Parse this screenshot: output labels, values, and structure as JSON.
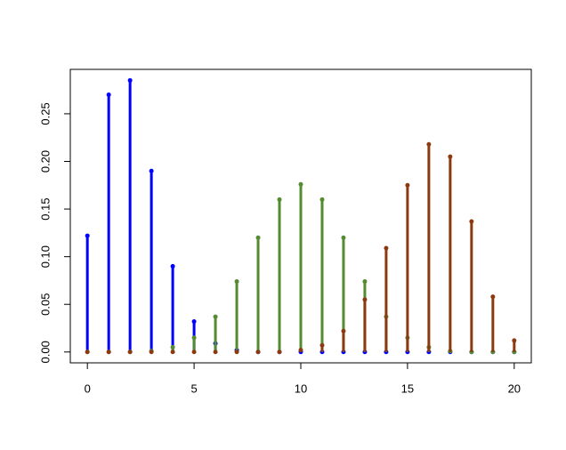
{
  "chart_data": {
    "type": "stem",
    "x": [
      0,
      1,
      2,
      3,
      4,
      5,
      6,
      7,
      8,
      9,
      10,
      11,
      12,
      13,
      14,
      15,
      16,
      17,
      18,
      19,
      20
    ],
    "series": [
      {
        "color": "#0000ff",
        "values": [
          0.122,
          0.27,
          0.285,
          0.19,
          0.09,
          0.032,
          0.009,
          0.002,
          0.0,
          0,
          0,
          0,
          0,
          0,
          0,
          0,
          0,
          0,
          0,
          0,
          0
        ]
      },
      {
        "color": "#548b30",
        "values": [
          0,
          0,
          0,
          0.001,
          0.005,
          0.015,
          0.037,
          0.074,
          0.12,
          0.16,
          0.176,
          0.16,
          0.12,
          0.074,
          0.037,
          0.015,
          0.005,
          0.001,
          0,
          0,
          0
        ]
      },
      {
        "color": "#8b3a10",
        "values": [
          0,
          0,
          0,
          0,
          0,
          0,
          0,
          0,
          0,
          0,
          0.002,
          0.007,
          0.022,
          0.055,
          0.109,
          0.175,
          0.218,
          0.205,
          0.137,
          0.058,
          0.012
        ]
      }
    ],
    "xlim": [
      -0.8,
      20.8
    ],
    "ylim": [
      -0.0114,
      0.2966
    ],
    "xticks": [
      0,
      5,
      10,
      15,
      20
    ],
    "yticks": [
      {
        "value": 0,
        "label": "0.00"
      },
      {
        "value": 0.05,
        "label": "0.05"
      },
      {
        "value": 0.1,
        "label": "0.10"
      },
      {
        "value": 0.15,
        "label": "0.15"
      },
      {
        "value": 0.2,
        "label": "0.20"
      },
      {
        "value": 0.25,
        "label": "0.25"
      }
    ]
  }
}
